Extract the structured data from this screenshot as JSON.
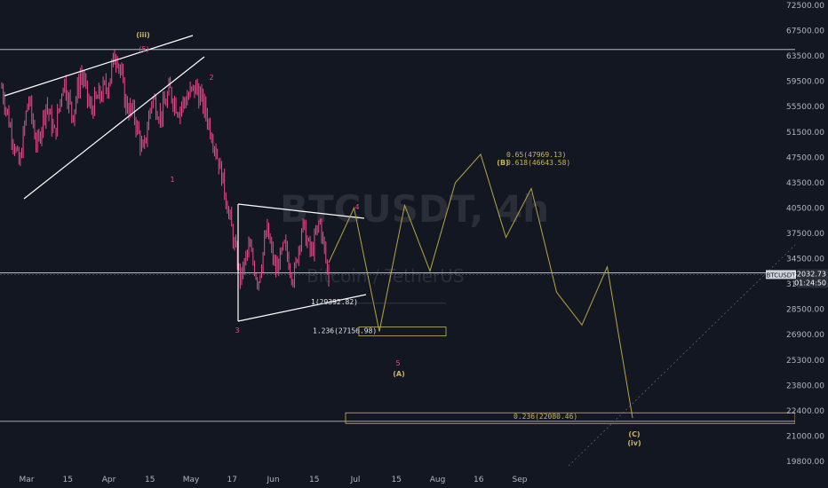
{
  "chart_data": {
    "type": "candlestick",
    "symbol": "BTCUSDT",
    "watermark_title": "BTCUSDT, 4h",
    "watermark_subtitle": "Bitcoin / TetherUS",
    "y_ticks": [
      "72500.00",
      "67500.00",
      "63500.00",
      "59500.00",
      "55500.00",
      "51500.00",
      "47500.00",
      "43500.00",
      "40500.00",
      "37500.00",
      "34500.00",
      "31500.00",
      "28500.00",
      "26900.00",
      "25300.00",
      "23800.00",
      "22400.00",
      "21000.00",
      "19800.00"
    ],
    "x_ticks": [
      "Mar",
      "15",
      "Apr",
      "15",
      "May",
      "17",
      "Jun",
      "15",
      "Jul",
      "15",
      "Aug",
      "16",
      "Sep"
    ],
    "last_price": "32032.73",
    "countdown": "01:24:50",
    "price_path": [
      58500,
      52000,
      46000,
      57000,
      49000,
      56000,
      51000,
      60000,
      54000,
      61000,
      55000,
      57000,
      59000,
      64500,
      56000,
      54000,
      48000,
      57000,
      54000,
      58000,
      55000,
      57000,
      58500,
      55000,
      50000,
      44000,
      38000,
      32000,
      36000,
      31500,
      38000,
      33000,
      36000,
      32000,
      38500,
      35000,
      39000,
      32000
    ],
    "wave_labels_pink": [
      "(5)",
      "1",
      "2",
      "3",
      "4",
      "5"
    ],
    "wave_labels_gold": [
      "(iii)",
      "(A)",
      "(B)",
      "(C)",
      "(iv)"
    ],
    "fib_levels": [
      {
        "text": "0.65(47969.13)",
        "price": 47969.13
      },
      {
        "text": "0.618(46643.58)",
        "price": 46643.58
      },
      {
        "text": "1(29392.82)",
        "price": 29392.82
      },
      {
        "text": "1.236(27156.98)",
        "price": 27156.98
      },
      {
        "text": "0.236(22080.46)",
        "price": 22080.46
      }
    ],
    "horizontal_levels": [
      64500,
      32800,
      21800
    ],
    "projection_path": [
      34000,
      40500,
      27100,
      40800,
      33000,
      43500,
      47969,
      37000,
      42800,
      30500,
      27500,
      33500,
      22000
    ],
    "colors": {
      "background": "#131722",
      "candle": "#e84c8b",
      "trendline": "#ffffff",
      "projection": "#b5a642",
      "fib": "#c8b560",
      "level": "#d1d4dc"
    }
  }
}
